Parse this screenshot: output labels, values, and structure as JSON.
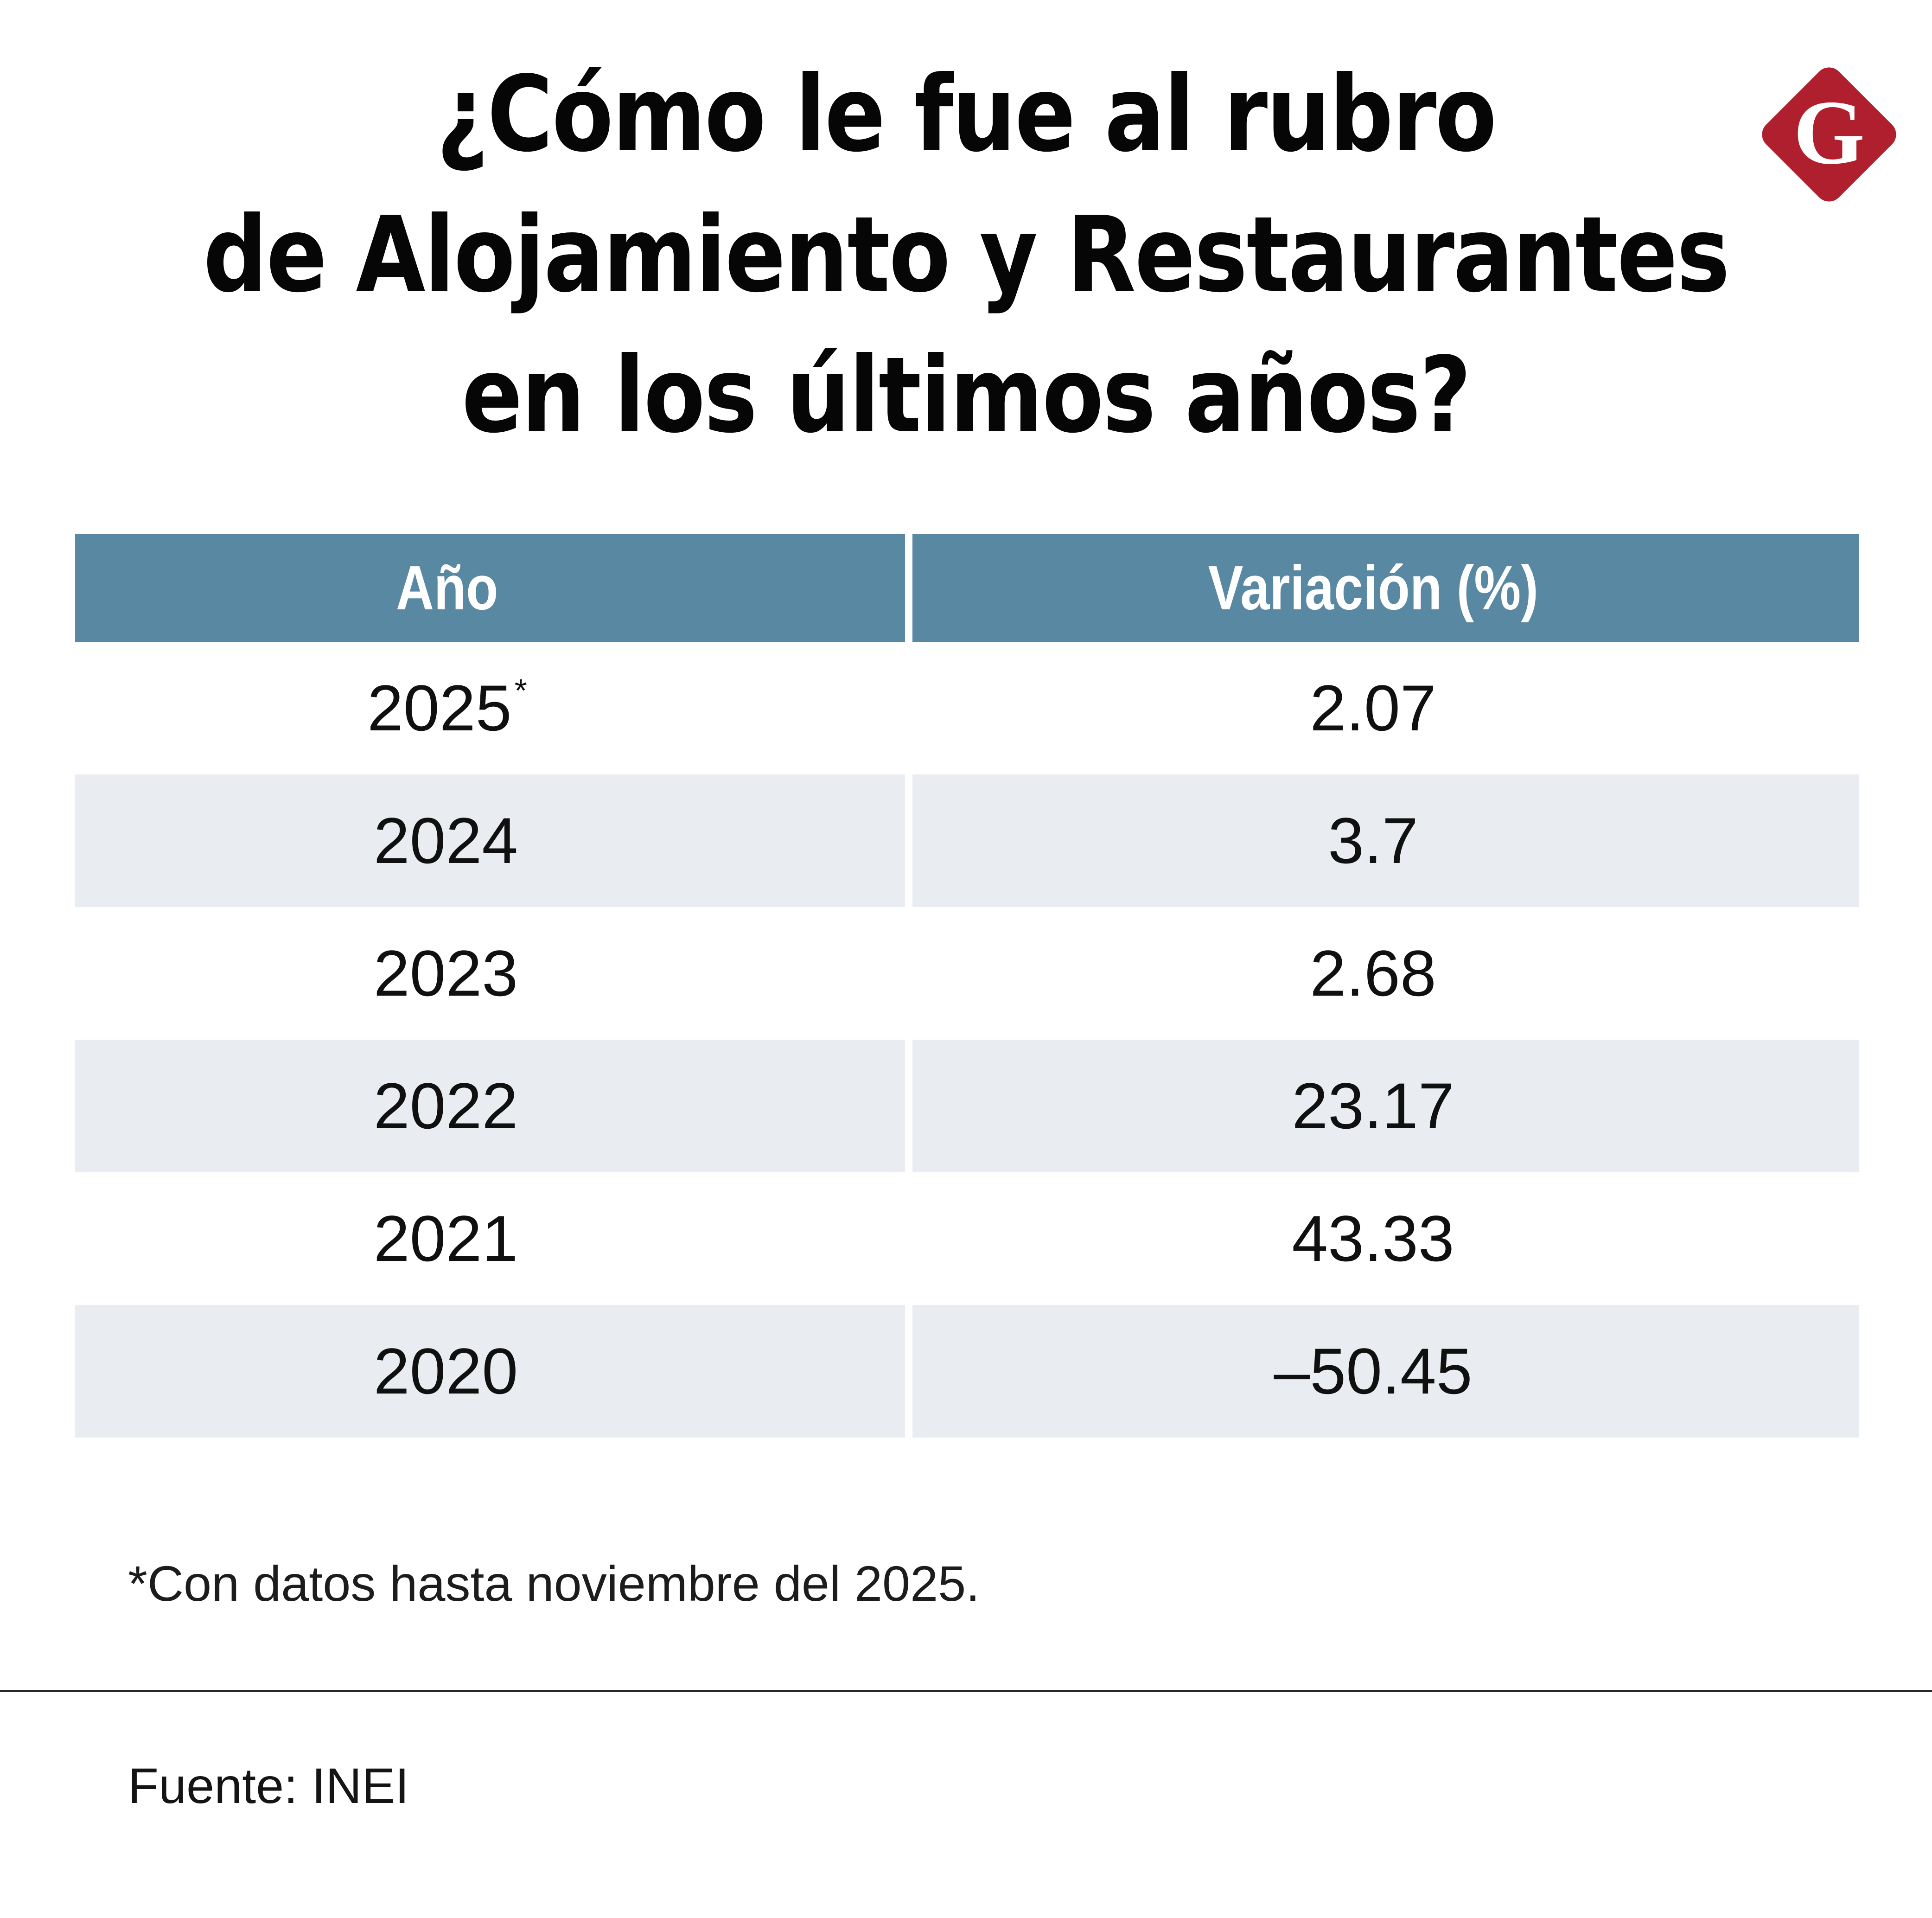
{
  "title": {
    "lines": [
      "¿Cómo le fue al rubro",
      "de Alojamiento y Restaurantes",
      "en los últimos años?"
    ]
  },
  "logo": {
    "letter": "G"
  },
  "table": {
    "columns": [
      "Año",
      "Variación (%)"
    ],
    "rows": [
      {
        "year": "2025",
        "note": "*",
        "variation": "2.07"
      },
      {
        "year": "2024",
        "note": "",
        "variation": "3.7"
      },
      {
        "year": "2023",
        "note": "",
        "variation": "2.68"
      },
      {
        "year": "2022",
        "note": "",
        "variation": "23.17"
      },
      {
        "year": "2021",
        "note": "",
        "variation": "43.33"
      },
      {
        "year": "2020",
        "note": "",
        "variation": "–50.45"
      }
    ]
  },
  "footnote": "*Con datos hasta noviembre del 2025.",
  "source": "Fuente: INEI",
  "colors": {
    "header_bg": "#5988A2",
    "row_alt_bg": "#E9EDF1",
    "logo_bg": "#B01F2D",
    "text": "#101010"
  },
  "chart_data": {
    "type": "table",
    "title": "¿Cómo le fue al rubro de Alojamiento y Restaurantes en los últimos años?",
    "columns": [
      "Año",
      "Variación (%)"
    ],
    "categories": [
      "2025*",
      "2024",
      "2023",
      "2022",
      "2021",
      "2020"
    ],
    "values": [
      2.07,
      3.7,
      2.68,
      23.17,
      43.33,
      -50.45
    ],
    "note": "*Con datos hasta noviembre del 2025.",
    "source": "Fuente: INEI",
    "legend_position": "none",
    "grid": false
  }
}
